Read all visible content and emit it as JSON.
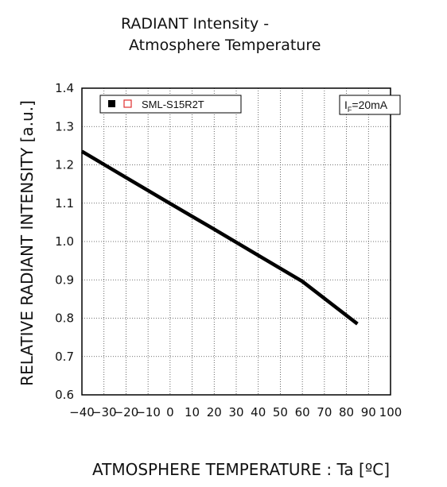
{
  "chart_data": {
    "type": "line",
    "title_line1": "RADIANT Intensity -",
    "title_line2": "Atmosphere Temperature",
    "xlabel": "ATMOSPHERE TEMPERATURE : Ta [ºC]",
    "ylabel": "RELATIVE RADIANT INTENSITY [a.u.]",
    "xlim": [
      -40,
      100
    ],
    "ylim": [
      0.6,
      1.4
    ],
    "x_ticks": [
      "-40",
      "-30",
      "-20",
      "-10",
      "0",
      "10",
      "20",
      "30",
      "40",
      "50",
      "60",
      "70",
      "80",
      "90",
      "100"
    ],
    "y_ticks": [
      "0.6",
      "0.7",
      "0.8",
      "0.9",
      "1.0",
      "1.1",
      "1.2",
      "1.3",
      "1.4"
    ],
    "grid": true,
    "legend": {
      "placement": "top-left",
      "filled_marker_color": "#000000",
      "hollow_marker_color": "#e03030",
      "label": "SML-S15R2T"
    },
    "annotation": {
      "placement": "top-right",
      "main": "I",
      "sub": "F",
      "rest": "=20mA"
    },
    "series": [
      {
        "name": "SML-S15R2T",
        "color": "#000000",
        "x": [
          -40,
          -20,
          0,
          20,
          40,
          60,
          85
        ],
        "y": [
          1.235,
          1.167,
          1.099,
          1.032,
          0.964,
          0.896,
          0.785
        ]
      }
    ]
  }
}
